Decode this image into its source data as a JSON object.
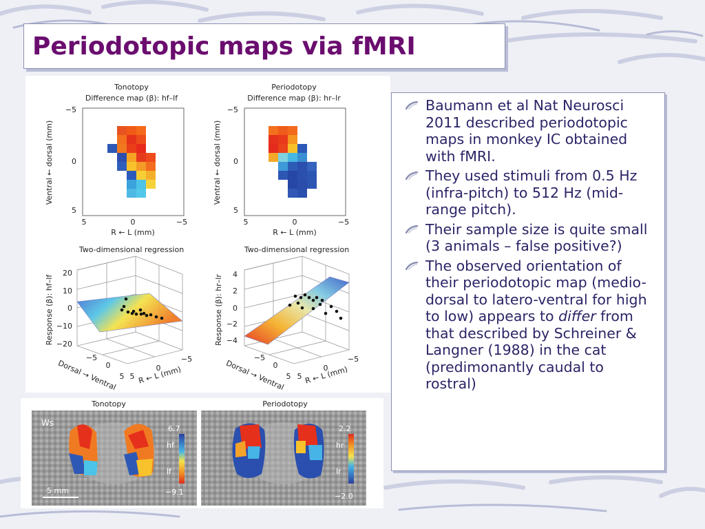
{
  "slide": {
    "title": "Periodotopic maps via fMRI",
    "bullets": [
      {
        "text": "Baumann et al Nat Neurosci 2011 described periodotopic maps in monkey IC obtained with fMRI."
      },
      {
        "text": "They used stimuli from 0.5 Hz (infra-pitch) to 512 Hz (mid-range pitch)."
      },
      {
        "text": "Their sample size is quite small (3 animals – false positive?)"
      },
      {
        "pre": "The observed orientation of their periodotopic map (medio-dorsal to latero-ventral for high to low) appears to ",
        "emph": "differ",
        "post": " from that described by Schreiner & Langner (1988) in the cat (predimonantly caudal to rostral)"
      }
    ]
  },
  "figure": {
    "panel_a_left": {
      "title": "Tonotopy",
      "subtitle": "Difference map (β): hf–lf",
      "ylabel": "Ventral ← dorsal (mm)",
      "xlabel": "R ← L (mm)"
    },
    "panel_a_right": {
      "title": "Periodotopy",
      "subtitle": "Difference map (β): hr–lr",
      "ylabel": "Ventral ← dorsal (mm)",
      "xlabel": "R ← L (mm)"
    },
    "map_ticks": {
      "y": [
        "−5",
        "0",
        "5"
      ],
      "x": [
        "5",
        "0",
        "−5"
      ]
    },
    "panel_b_left": {
      "title": "Two-dimensional regression",
      "zlabel": "Response (β): hf–lf",
      "zticks": [
        "20",
        "10",
        "0",
        "−10",
        "−20"
      ],
      "xlabel": "Dorsal → Ventral",
      "ylabel": "R ← L (mm)",
      "xticks": [
        "5",
        "0",
        "−5"
      ],
      "dticks": [
        "−5",
        "0",
        "5"
      ]
    },
    "panel_b_right": {
      "title": "Two-dimensional regression",
      "zlabel": "Response (β): hr–lr",
      "zticks": [
        "4",
        "2",
        "0",
        "−2",
        "−4"
      ],
      "xlabel": "Dorsal → Ventral",
      "ylabel": "R ← L (mm)",
      "xticks": [
        "5",
        "0",
        "−5"
      ],
      "dticks": [
        "−5",
        "0",
        "5"
      ]
    },
    "panel_c_left": {
      "title": "Tonotopy",
      "tag": "Ws",
      "top": "6.7",
      "hi": "hf",
      "lo": "lf",
      "bottom": "−9.1",
      "scalebar": "5 mm"
    },
    "panel_c_right": {
      "title": "Periodotopy",
      "top": "2.2",
      "hi": "hr",
      "lo": "lr",
      "bottom": "−2.0"
    }
  }
}
